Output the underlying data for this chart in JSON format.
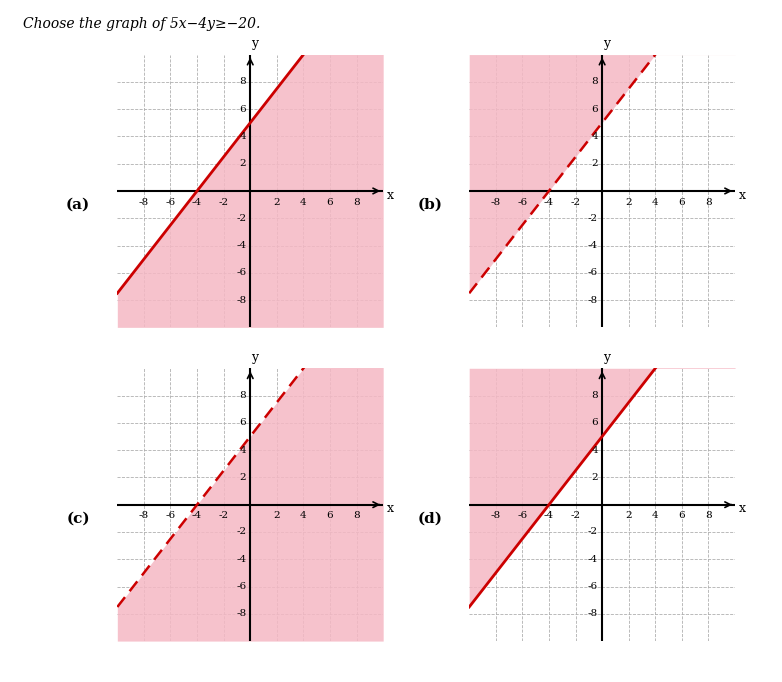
{
  "title": "Choose the graph of 5− 4≥−",
  "title_text": "Choose the graph of 5x−4y≥−20.",
  "xlim": [
    -10,
    10
  ],
  "ylim": [
    -10,
    10
  ],
  "xticks": [
    -8,
    -6,
    -4,
    -2,
    2,
    4,
    6,
    8
  ],
  "yticks": [
    -8,
    -6,
    -4,
    -2,
    2,
    4,
    6,
    8
  ],
  "slope": 1.25,
  "intercept": 5,
  "shade_color": "#f5b8c4",
  "line_color": "#cc0000",
  "background": "white",
  "grid_color": "#b0b0b0",
  "panels": [
    {
      "label": "(a)",
      "linestyle": "solid",
      "shade_above": false
    },
    {
      "label": "(b)",
      "linestyle": "dashed",
      "shade_above": true
    },
    {
      "label": "(c)",
      "linestyle": "dashed",
      "shade_above": false
    },
    {
      "label": "(d)",
      "linestyle": "solid",
      "shade_above": true
    }
  ],
  "fig_width": 7.82,
  "fig_height": 6.82
}
